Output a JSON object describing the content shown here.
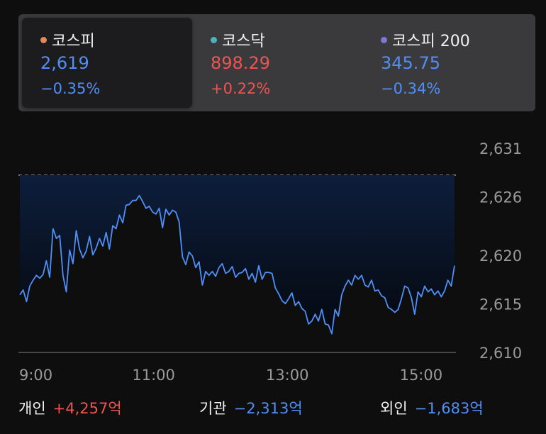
{
  "indices": [
    {
      "name": "코스피",
      "value": "2,619",
      "change": "−0.35%",
      "dot_color": "#e08a5a",
      "value_color": "#4f8ff7",
      "selected": true
    },
    {
      "name": "코스닥",
      "value": "898.29",
      "change": "+0.22%",
      "dot_color": "#4fb3bf",
      "value_color": "#ef5350",
      "selected": false
    },
    {
      "name": "코스피 200",
      "value": "345.75",
      "change": "−0.34%",
      "dot_color": "#7d7ad6",
      "value_color": "#4f8ff7",
      "selected": false
    }
  ],
  "chart": {
    "y_ticks": [
      "2,631",
      "2,626",
      "2,620",
      "2,615",
      "2,610"
    ],
    "x_ticks": [
      "9:00",
      "11:00",
      "13:00",
      "15:00"
    ]
  },
  "chart_data": {
    "type": "area",
    "series": [
      {
        "values": [
          2616.0,
          2616.5,
          2615.3,
          2616.9,
          2617.5,
          2618.0,
          2617.7,
          2618.1,
          2619.5,
          2617.8,
          2622.8,
          2621.8,
          2622.1,
          2618.0,
          2616.3,
          2620.6,
          2619.2,
          2622.6,
          2620.7,
          2619.8,
          2620.5,
          2622.0,
          2620.1,
          2620.8,
          2621.8,
          2621.0,
          2622.4,
          2620.7,
          2623.1,
          2622.8,
          2624.2,
          2623.4,
          2625.2,
          2625.3,
          2625.7,
          2625.7,
          2626.2,
          2625.6,
          2624.9,
          2625.1,
          2624.5,
          2624.3,
          2624.9,
          2622.9,
          2624.8,
          2624.2,
          2624.7,
          2624.5,
          2623.5,
          2619.9,
          2619.1,
          2620.4,
          2620.0,
          2618.8,
          2619.4,
          2617.0,
          2618.4,
          2618.0,
          2618.4,
          2617.9,
          2618.8,
          2619.2,
          2618.2,
          2618.4,
          2618.9,
          2617.8,
          2618.2,
          2618.3,
          2618.7,
          2617.6,
          2618.2,
          2617.3,
          2619.0,
          2617.6,
          2618.3,
          2618.3,
          2618.2,
          2616.7,
          2616.1,
          2615.4,
          2615.1,
          2615.6,
          2616.2,
          2614.9,
          2615.3,
          2614.6,
          2614.3,
          2613.0,
          2613.3,
          2614.0,
          2613.3,
          2614.5,
          2613.0,
          2612.9,
          2612.0,
          2614.5,
          2613.8,
          2616.0,
          2616.9,
          2617.5,
          2617.0,
          2618.0,
          2617.6,
          2618.0,
          2617.0,
          2616.8,
          2617.5,
          2616.4,
          2616.5,
          2615.9,
          2615.7,
          2614.7,
          2614.5,
          2614.2,
          2614.5,
          2615.6,
          2616.9,
          2616.7,
          2615.7,
          2614.0,
          2616.3,
          2615.8,
          2616.9,
          2616.3,
          2616.6,
          2616.0,
          2616.4,
          2615.8,
          2616.4,
          2617.5,
          2616.9,
          2619.0
        ],
        "x_start": "9:00",
        "x_end": "15:30"
      }
    ],
    "reference_value": 2628.3,
    "x_ticks": [
      "9:00",
      "11:00",
      "13:00",
      "15:00"
    ],
    "ylim": [
      2610,
      2631
    ],
    "y_axis_side": "right",
    "line_color": "#4f8ff7",
    "area_colors": [
      "#0d1e3b",
      "#05080f"
    ],
    "reference_line": "dashed"
  },
  "investors": [
    {
      "label": "개인",
      "value": "+4,257억",
      "color": "#ef5350"
    },
    {
      "label": "기관",
      "value": "−2,313억",
      "color": "#4f8ff7"
    },
    {
      "label": "외인",
      "value": "−1,683억",
      "color": "#4f8ff7"
    }
  ]
}
